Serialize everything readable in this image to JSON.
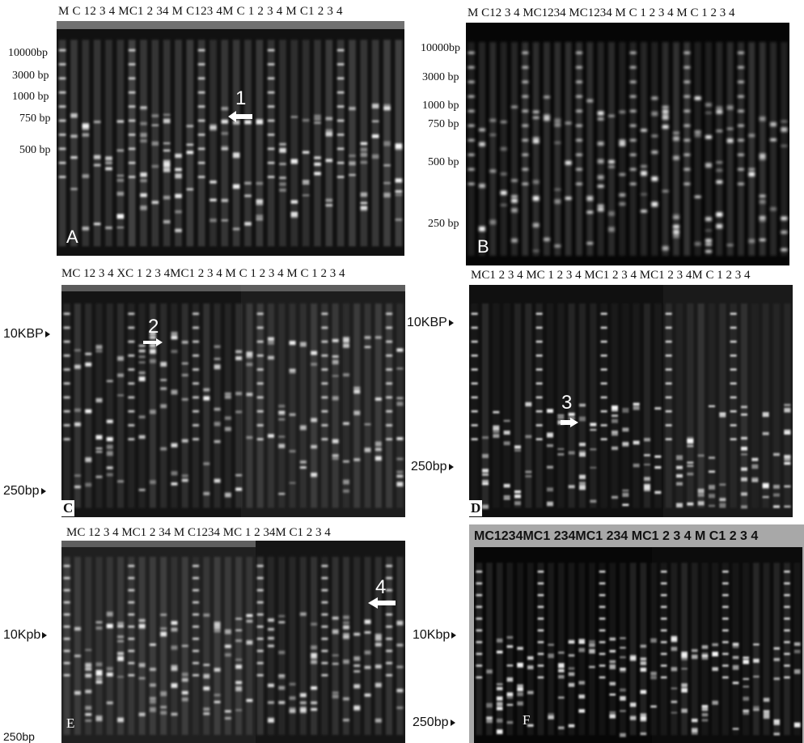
{
  "panels": {
    "A": {
      "letter": "A",
      "lane_labels": "M C  12  3  4  MC1  2  34  M  C123  4M  C  1  2  3  4  M  C1  2  3  4",
      "size_markers": [
        "10000bp",
        "3000 bp",
        "1000 bp",
        "750 bp",
        "500 bp"
      ],
      "arrow_number": "1"
    },
    "B": {
      "letter": "B",
      "lane_labels": "M C12  3  4 MC1234 MC1234  M C 1  2   3   4  M C 1   2   3   4",
      "size_markers": [
        "10000bp",
        "3000 bp",
        "1000 bp",
        "750 bp",
        "500 bp",
        "250 bp"
      ]
    },
    "C": {
      "letter": "C",
      "lane_labels": "MC   12 3 4  XC 1 2 3 4MC1 2 3 4  M    C  1 2  3   4 M   C  1 2  3  4",
      "size_markers": [
        "10KBP",
        "250bp"
      ],
      "arrow_number": "2"
    },
    "D": {
      "letter": "D",
      "lane_labels": "MC1 2 3 4  MC 1 2 3 4  MC1 2 3 4  MC1 2 3 4M C 1 2 3 4",
      "size_markers": [
        "10KBP",
        "250bp"
      ],
      "arrow_number": "3"
    },
    "E": {
      "letter": "E",
      "lane_labels": "MC  12  3  4  MC1  2  34  M  C1234  MC 1  2   34M  C1  2  3  4",
      "size_markers": [
        "10Kpb",
        "250bp"
      ],
      "arrow_number": "4"
    },
    "F": {
      "letter": "F",
      "lane_labels": "MC1234MC1 234MC1 234 MC1 2 3 4 M C1 2 3 4",
      "size_markers": [
        "10Kbp",
        "250bp"
      ]
    }
  },
  "colors": {
    "gel_dark": "#0a0a0a",
    "band": "#ffffff",
    "frame_F": "#a8a8a8"
  }
}
